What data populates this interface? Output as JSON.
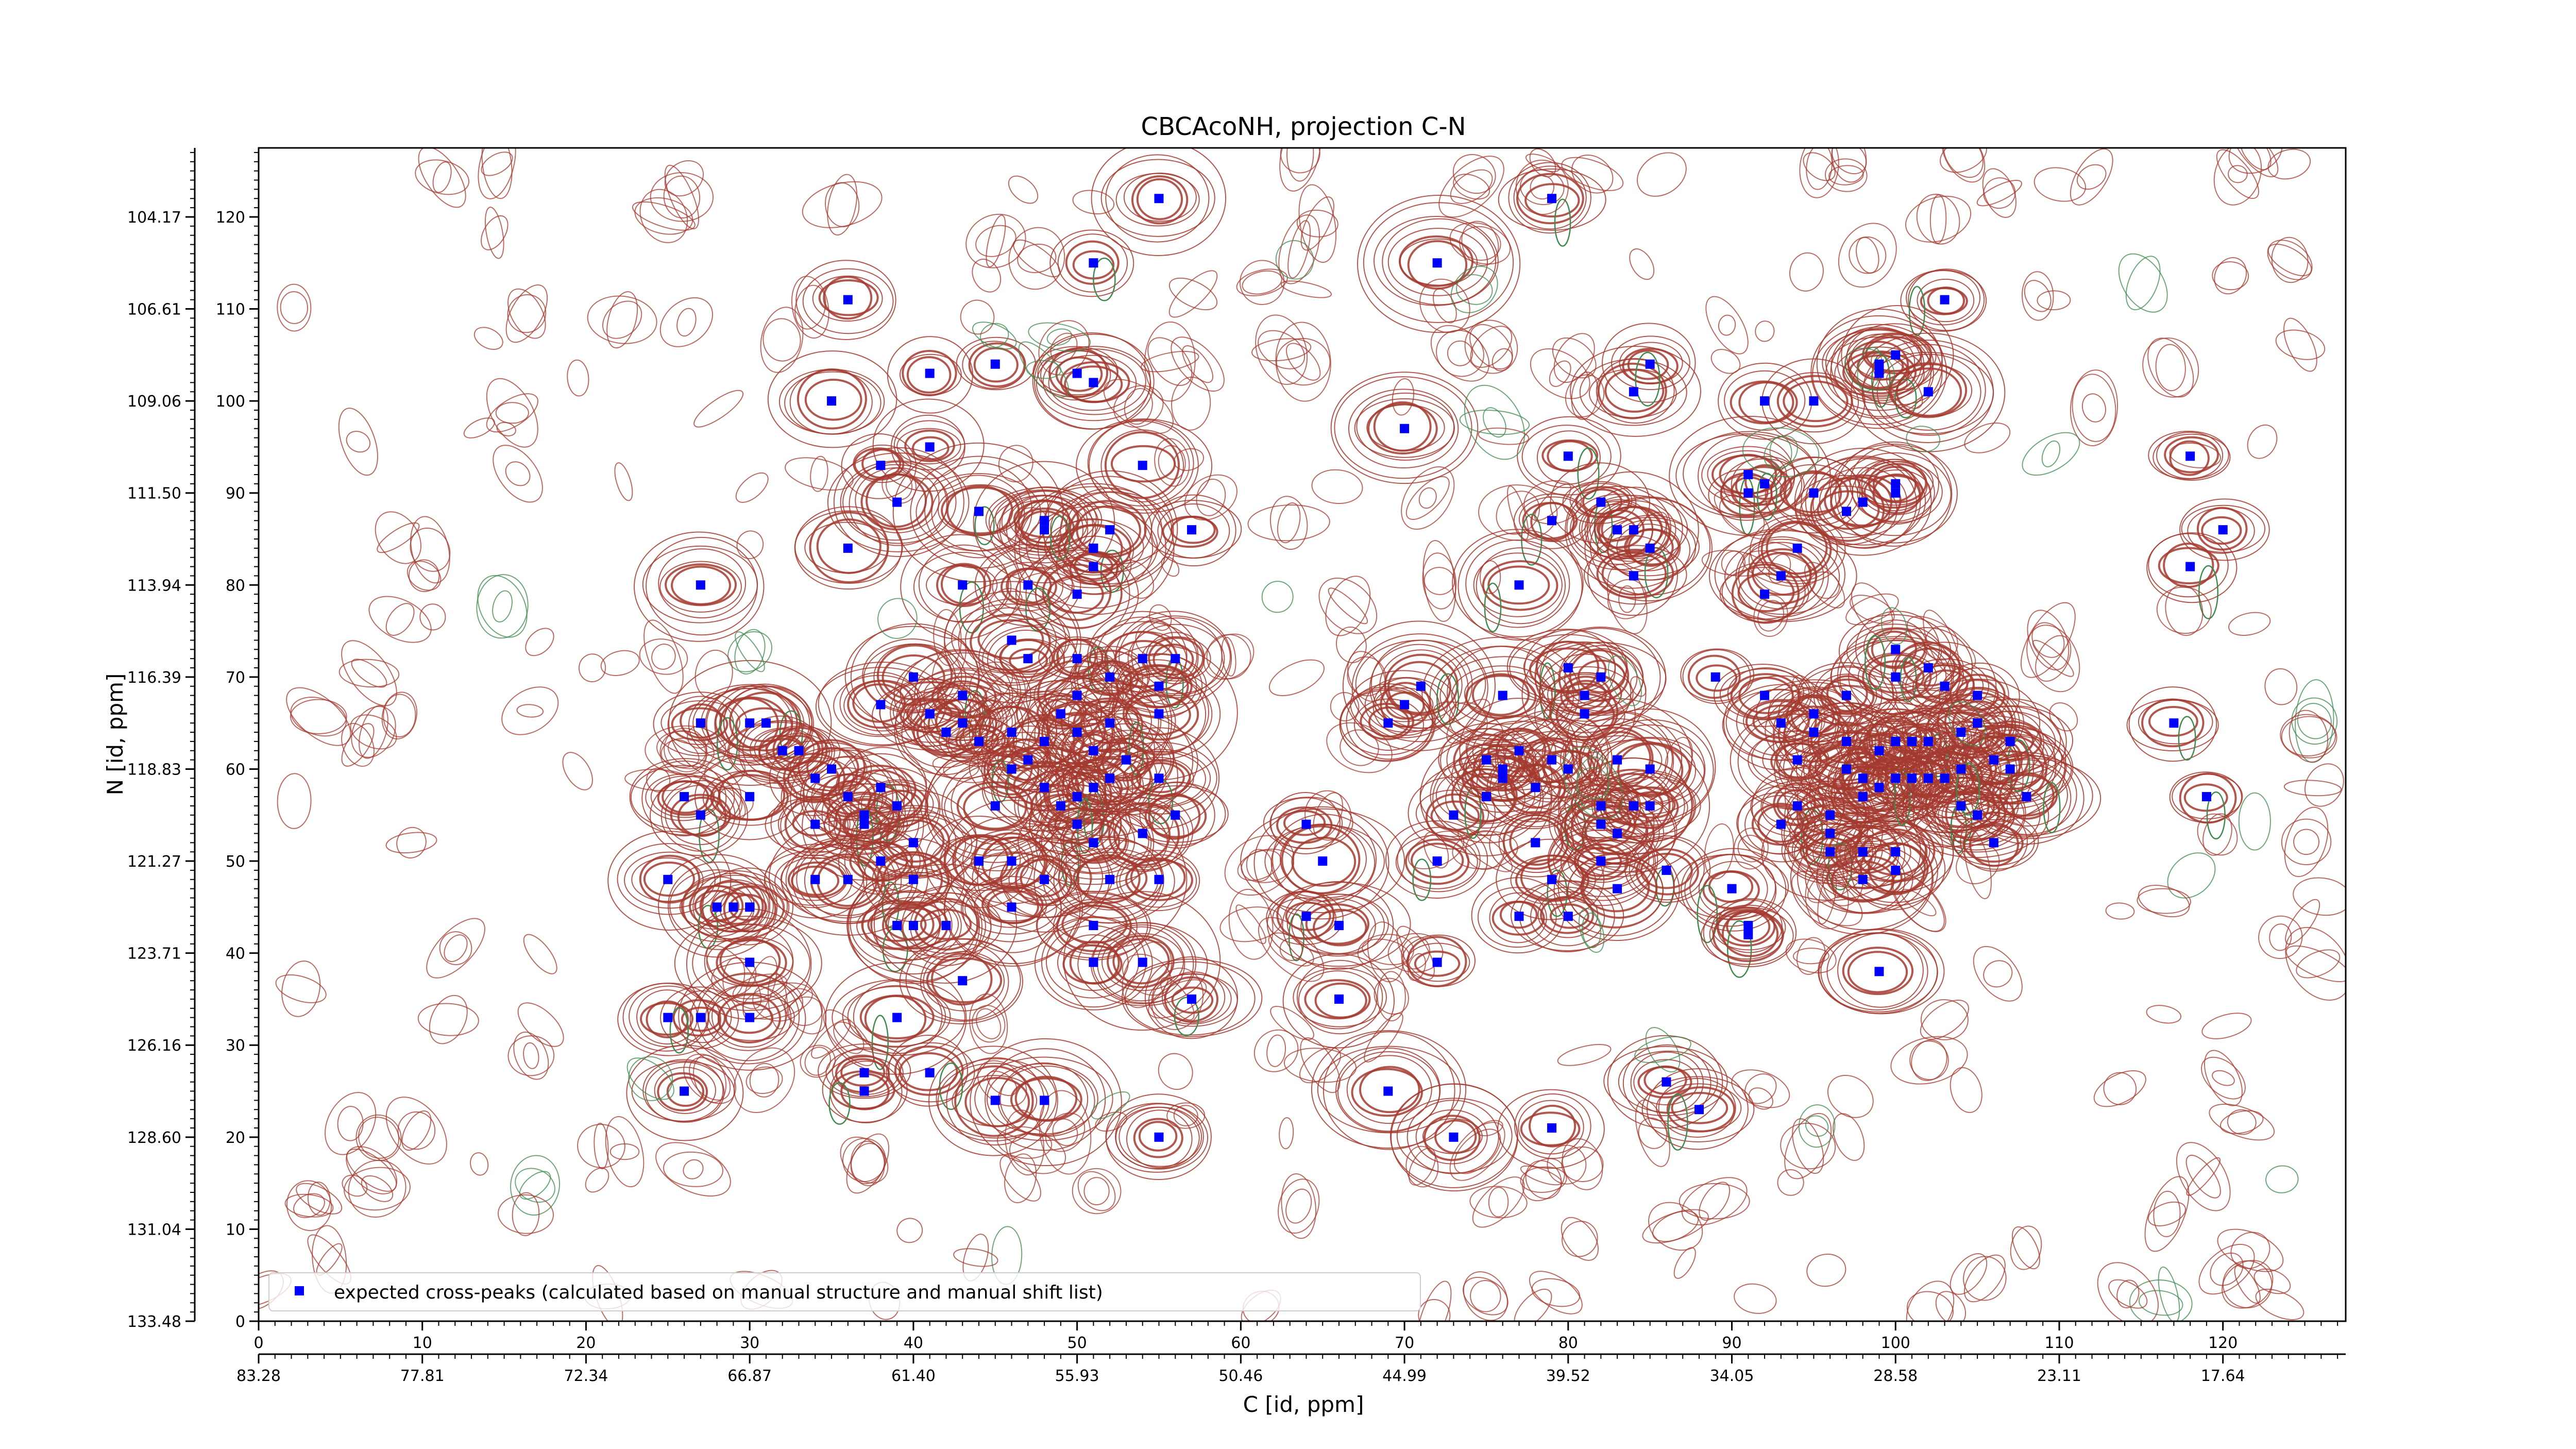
{
  "chart_data": {
    "type": "scatter",
    "title": "CBCAcoNH, projection C-N",
    "xlabel": "C [id, ppm]",
    "ylabel": "N [id, ppm]",
    "xlim": [
      0,
      127.5
    ],
    "ylim": [
      0,
      127.5
    ],
    "x_index_ticks": [
      "0",
      "10",
      "20",
      "30",
      "40",
      "50",
      "60",
      "70",
      "80",
      "90",
      "100",
      "110",
      "120"
    ],
    "x_ppm_ticks": [
      "83.28",
      "77.81",
      "72.34",
      "66.87",
      "61.40",
      "55.93",
      "50.46",
      "44.99",
      "39.52",
      "34.05",
      "28.58",
      "23.11",
      "17.64"
    ],
    "y_index_ticks": [
      "0",
      "10",
      "20",
      "30",
      "40",
      "50",
      "60",
      "70",
      "80",
      "90",
      "100",
      "110",
      "120"
    ],
    "y_ppm_ticks": [
      "133.48",
      "131.04",
      "128.60",
      "126.16",
      "123.71",
      "121.27",
      "118.83",
      "116.39",
      "113.94",
      "111.50",
      "109.06",
      "106.61",
      "104.17"
    ],
    "contour_colors": {
      "positive": "#a33a2f",
      "negative": "#3f8a4f"
    },
    "marker_color": "#0000ff",
    "legend": {
      "label": "expected cross-peaks (calculated based on manual structure and manual shift list)",
      "position": "lower-left"
    },
    "series": [
      {
        "name": "expected cross-peaks (calculated based on manual structure and manual shift list)",
        "points": [
          [
            55,
            122
          ],
          [
            51,
            115
          ],
          [
            36,
            111
          ],
          [
            35,
            100
          ],
          [
            41,
            103
          ],
          [
            45,
            104
          ],
          [
            50,
            103
          ],
          [
            51,
            102
          ],
          [
            48,
            86
          ],
          [
            51,
            84
          ],
          [
            51,
            82
          ],
          [
            50,
            79
          ],
          [
            57,
            86
          ],
          [
            54,
            93
          ],
          [
            38,
            93
          ],
          [
            41,
            95
          ],
          [
            39,
            89
          ],
          [
            44,
            88
          ],
          [
            48,
            87
          ],
          [
            52,
            86
          ],
          [
            36,
            84
          ],
          [
            43,
            80
          ],
          [
            47,
            80
          ],
          [
            27,
            80
          ],
          [
            72,
            115
          ],
          [
            70,
            97
          ],
          [
            79,
            122
          ],
          [
            103,
            111
          ],
          [
            84,
            101
          ],
          [
            85,
            104
          ],
          [
            99,
            104
          ],
          [
            100,
            105
          ],
          [
            99,
            103
          ],
          [
            102,
            101
          ],
          [
            92,
            100
          ],
          [
            95,
            100
          ],
          [
            80,
            94
          ],
          [
            82,
            89
          ],
          [
            83,
            86
          ],
          [
            84,
            86
          ],
          [
            85,
            84
          ],
          [
            79,
            87
          ],
          [
            84,
            81
          ],
          [
            77,
            80
          ],
          [
            91,
            90
          ],
          [
            91,
            92
          ],
          [
            92,
            91
          ],
          [
            95,
            90
          ],
          [
            97,
            88
          ],
          [
            94,
            84
          ],
          [
            93,
            81
          ],
          [
            92,
            79
          ],
          [
            98,
            89
          ],
          [
            100,
            90
          ],
          [
            100,
            91
          ],
          [
            118,
            94
          ],
          [
            120,
            86
          ],
          [
            118,
            82
          ],
          [
            46,
            74
          ],
          [
            47,
            72
          ],
          [
            50,
            72
          ],
          [
            52,
            70
          ],
          [
            54,
            72
          ],
          [
            56,
            72
          ],
          [
            55,
            69
          ],
          [
            55,
            66
          ],
          [
            40,
            70
          ],
          [
            43,
            68
          ],
          [
            38,
            67
          ],
          [
            41,
            66
          ],
          [
            42,
            64
          ],
          [
            43,
            65
          ],
          [
            44,
            63
          ],
          [
            46,
            64
          ],
          [
            48,
            63
          ],
          [
            49,
            66
          ],
          [
            50,
            64
          ],
          [
            51,
            62
          ],
          [
            52,
            59
          ],
          [
            51,
            58
          ],
          [
            50,
            57
          ],
          [
            48,
            58
          ],
          [
            47,
            61
          ],
          [
            46,
            60
          ],
          [
            50,
            68
          ],
          [
            52,
            65
          ],
          [
            53,
            61
          ],
          [
            55,
            59
          ],
          [
            56,
            55
          ],
          [
            54,
            53
          ],
          [
            51,
            52
          ],
          [
            49,
            56
          ],
          [
            50,
            54
          ],
          [
            45,
            56
          ],
          [
            46,
            50
          ],
          [
            44,
            50
          ],
          [
            40,
            52
          ],
          [
            39,
            56
          ],
          [
            38,
            58
          ],
          [
            37,
            54
          ],
          [
            36,
            48
          ],
          [
            38,
            50
          ],
          [
            40,
            48
          ],
          [
            34,
            54
          ],
          [
            34,
            59
          ],
          [
            30,
            57
          ],
          [
            27,
            55
          ],
          [
            26,
            57
          ],
          [
            27,
            65
          ],
          [
            30,
            65
          ],
          [
            31,
            65
          ],
          [
            32,
            62
          ],
          [
            33,
            62
          ],
          [
            35,
            60
          ],
          [
            36,
            57
          ],
          [
            37,
            55
          ],
          [
            34,
            48
          ],
          [
            25,
            48
          ],
          [
            28,
            45
          ],
          [
            29,
            45
          ],
          [
            30,
            45
          ],
          [
            30,
            39
          ],
          [
            39,
            43
          ],
          [
            40,
            43
          ],
          [
            42,
            43
          ],
          [
            46,
            45
          ],
          [
            55,
            48
          ],
          [
            52,
            48
          ],
          [
            48,
            48
          ],
          [
            43,
            37
          ],
          [
            51,
            43
          ],
          [
            51,
            39
          ],
          [
            54,
            39
          ],
          [
            57,
            35
          ],
          [
            25,
            33
          ],
          [
            27,
            33
          ],
          [
            30,
            33
          ],
          [
            39,
            33
          ],
          [
            37,
            27
          ],
          [
            37,
            25
          ],
          [
            41,
            27
          ],
          [
            45,
            24
          ],
          [
            48,
            24
          ],
          [
            26,
            25
          ],
          [
            55,
            20
          ],
          [
            64,
            54
          ],
          [
            65,
            50
          ],
          [
            64,
            44
          ],
          [
            66,
            43
          ],
          [
            66,
            35
          ],
          [
            69,
            65
          ],
          [
            71,
            69
          ],
          [
            70,
            67
          ],
          [
            73,
            55
          ],
          [
            72,
            50
          ],
          [
            72,
            39
          ],
          [
            78,
            52
          ],
          [
            77,
            44
          ],
          [
            79,
            48
          ],
          [
            80,
            44
          ],
          [
            75,
            57
          ],
          [
            76,
            59
          ],
          [
            76,
            60
          ],
          [
            77,
            62
          ],
          [
            78,
            58
          ],
          [
            79,
            61
          ],
          [
            80,
            60
          ],
          [
            75,
            61
          ],
          [
            76,
            68
          ],
          [
            80,
            71
          ],
          [
            82,
            70
          ],
          [
            81,
            68
          ],
          [
            81,
            66
          ],
          [
            83,
            61
          ],
          [
            82,
            56
          ],
          [
            84,
            56
          ],
          [
            85,
            60
          ],
          [
            85,
            56
          ],
          [
            82,
            54
          ],
          [
            83,
            53
          ],
          [
            82,
            50
          ],
          [
            86,
            49
          ],
          [
            83,
            47
          ],
          [
            89,
            70
          ],
          [
            92,
            68
          ],
          [
            90,
            47
          ],
          [
            91,
            43
          ],
          [
            91,
            42
          ],
          [
            94,
            56
          ],
          [
            96,
            55
          ],
          [
            98,
            57
          ],
          [
            98,
            51
          ],
          [
            96,
            51
          ],
          [
            96,
            53
          ],
          [
            98,
            48
          ],
          [
            100,
            51
          ],
          [
            99,
            38
          ],
          [
            100,
            49
          ],
          [
            104,
            56
          ],
          [
            105,
            55
          ],
          [
            106,
            52
          ],
          [
            93,
            65
          ],
          [
            95,
            64
          ],
          [
            97,
            63
          ],
          [
            99,
            62
          ],
          [
            100,
            63
          ],
          [
            101,
            63
          ],
          [
            102,
            63
          ],
          [
            104,
            64
          ],
          [
            104,
            60
          ],
          [
            106,
            61
          ],
          [
            105,
            65
          ],
          [
            107,
            63
          ],
          [
            107,
            60
          ],
          [
            108,
            57
          ],
          [
            97,
            60
          ],
          [
            98,
            59
          ],
          [
            99,
            58
          ],
          [
            100,
            59
          ],
          [
            101,
            59
          ],
          [
            102,
            59
          ],
          [
            103,
            59
          ],
          [
            97,
            68
          ],
          [
            100,
            70
          ],
          [
            100,
            73
          ],
          [
            102,
            71
          ],
          [
            103,
            69
          ],
          [
            105,
            68
          ],
          [
            95,
            66
          ],
          [
            94,
            61
          ],
          [
            93,
            54
          ],
          [
            69,
            25
          ],
          [
            73,
            20
          ],
          [
            79,
            21
          ],
          [
            86,
            26
          ],
          [
            88,
            23
          ],
          [
            117,
            65
          ],
          [
            119,
            57
          ]
        ]
      }
    ]
  }
}
